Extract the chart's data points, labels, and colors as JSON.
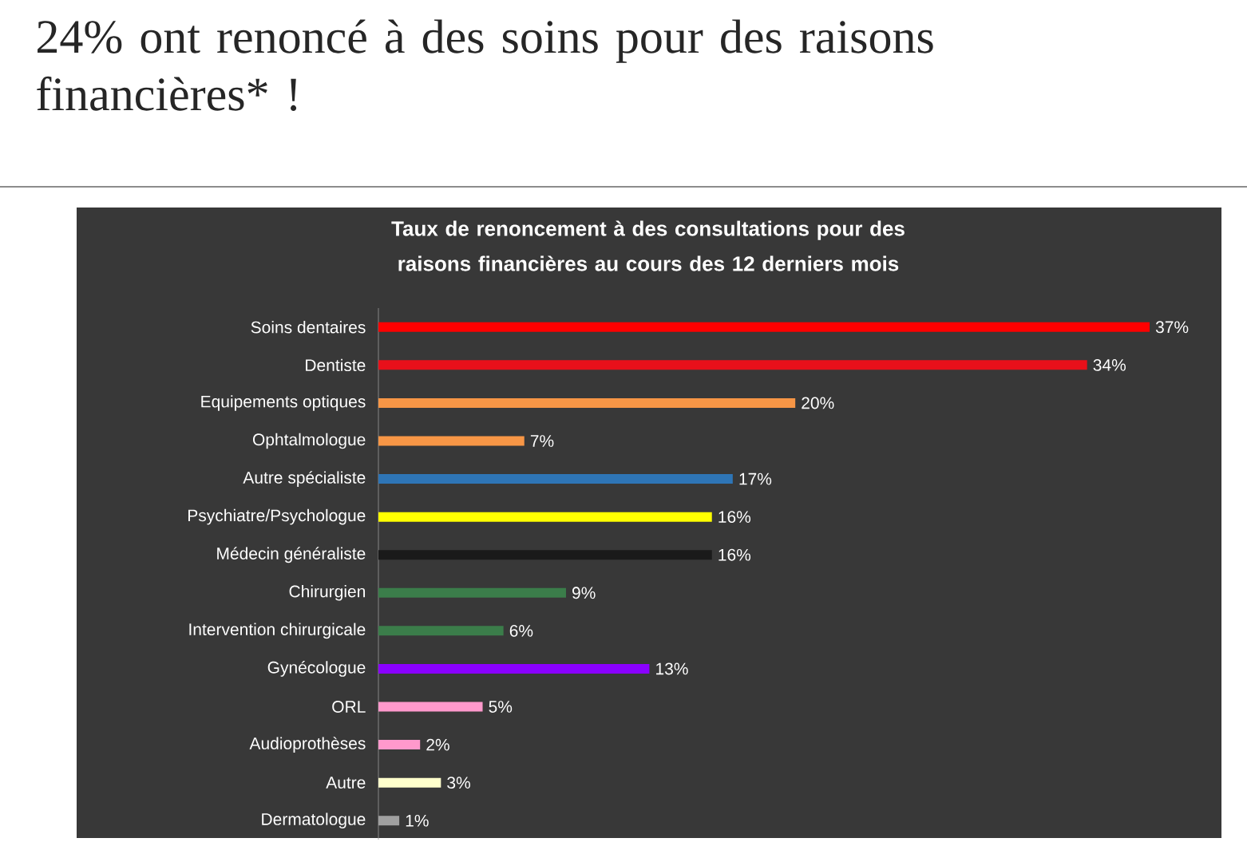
{
  "chart_data": {
    "type": "bar",
    "orientation": "horizontal",
    "title": "Taux de renoncement à des consultations pour des raisons financières au cours des 12 derniers mois",
    "annotations": [
      "24% ont renoncé à des soins pour des raisons financières* !"
    ],
    "categories": [
      "Soins dentaires",
      "Dentiste",
      "Equipements optiques",
      "Ophtalmologue",
      "Autre spécialiste",
      "Psychiatre/Psychologue",
      "Médecin généraliste",
      "Chirurgien",
      "Intervention chirurgicale",
      "Gynécologue",
      "ORL",
      "Audioprothèses",
      "Autre",
      "Dermatologue"
    ],
    "values": [
      37,
      34,
      20,
      7,
      17,
      16,
      16,
      9,
      6,
      13,
      5,
      2,
      3,
      1
    ],
    "value_labels": [
      "37%",
      "34%",
      "20%",
      "7%",
      "17%",
      "16%",
      "16%",
      "9%",
      "6%",
      "13%",
      "5%",
      "2%",
      "3%",
      "1%"
    ],
    "colors": [
      "#ff0000",
      "#e8101a",
      "#f79646",
      "#f79646",
      "#2e75b6",
      "#ffff00",
      "#1a1a1a",
      "#3b7d4a",
      "#3b7d4a",
      "#8a00ff",
      "#ff99cc",
      "#ff99cc",
      "#ffffcc",
      "#a0a0a0"
    ]
  }
}
